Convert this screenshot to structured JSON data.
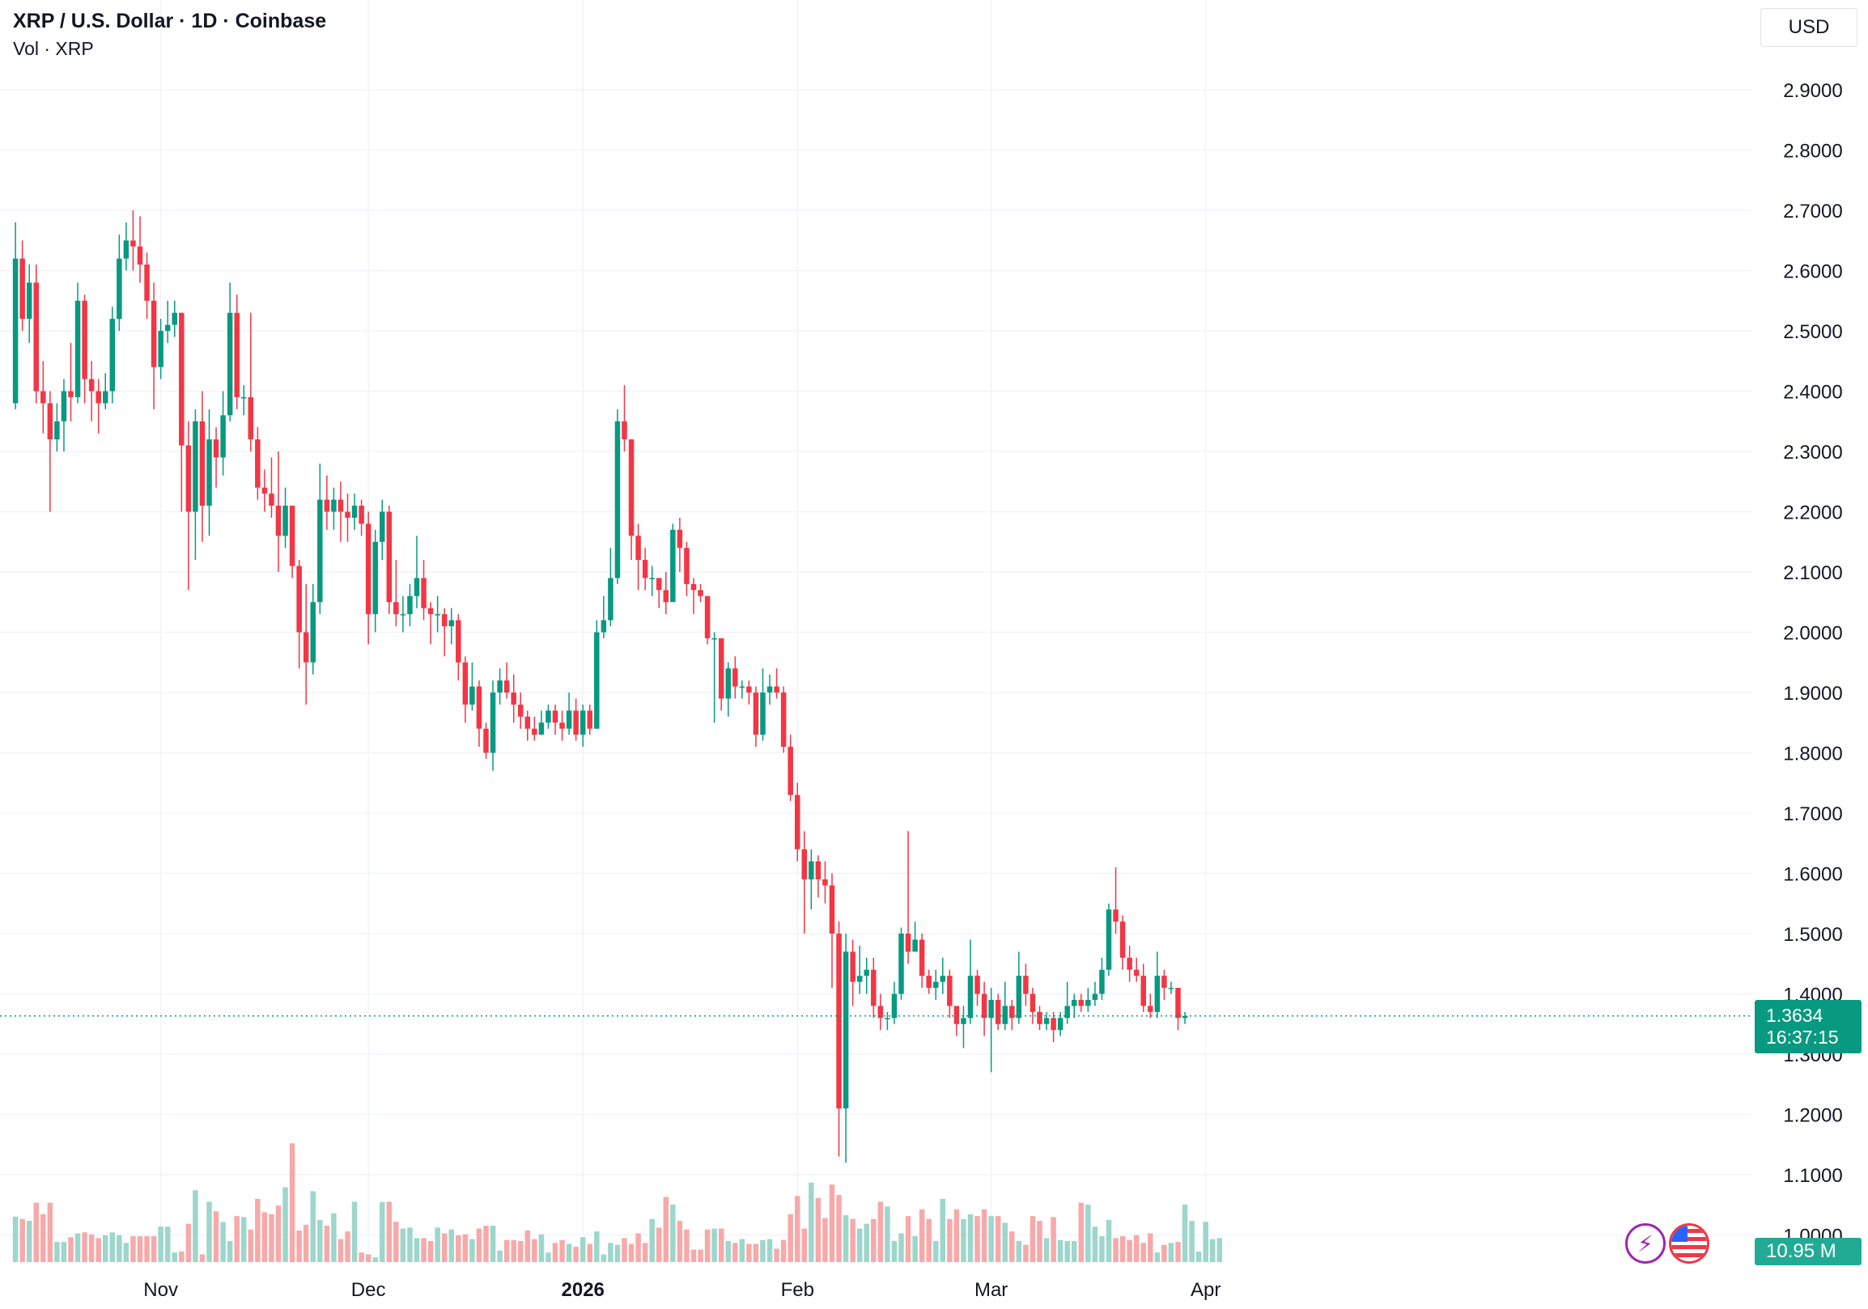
{
  "legend": {
    "title": "XRP / U.S. Dollar · 1D · Coinbase",
    "volume_label": "Vol · XRP"
  },
  "price_scale": {
    "currency": "USD"
  },
  "last_price": {
    "value": "1.3634",
    "countdown": "16:37:15",
    "color": "#089981"
  },
  "volume_last": {
    "value": "10.95 M",
    "color": "#22ab94"
  },
  "icons": {
    "badges": [
      "lightning-icon",
      "us-flag-icon"
    ]
  },
  "colors": {
    "up": "#089981",
    "down": "#f23645",
    "volume_up": "#9dd6cc",
    "volume_down": "#f7a9a9",
    "grid": "#f0f3fa"
  },
  "chart_data": {
    "type": "candlestick",
    "title": "XRP / U.S. Dollar · 1D · Coinbase",
    "y_ticks": [
      "2.9000",
      "2.8000",
      "2.7000",
      "2.6000",
      "2.5000",
      "2.4000",
      "2.3000",
      "2.2000",
      "2.1000",
      "2.0000",
      "1.9000",
      "1.8000",
      "1.7000",
      "1.6000",
      "1.5000",
      "1.4000",
      "1.3000",
      "1.2000",
      "1.1000",
      "1.0000"
    ],
    "x_ticks": [
      {
        "label": "Nov",
        "day": 23,
        "bold": false
      },
      {
        "label": "Dec",
        "day": 53,
        "bold": false
      },
      {
        "label": "2026",
        "day": 84,
        "bold": true
      },
      {
        "label": "Feb",
        "day": 115,
        "bold": false
      },
      {
        "label": "Mar",
        "day": 143,
        "bold": false
      },
      {
        "label": "Apr",
        "day": 174,
        "bold": false
      }
    ],
    "ylim": [
      0.95,
      2.97
    ],
    "grid": true,
    "last_day": 171,
    "ohlc": [
      [
        2.38,
        2.62,
        2.68,
        2.37
      ],
      [
        2.62,
        2.52,
        2.65,
        2.5
      ],
      [
        2.52,
        2.58,
        2.61,
        2.48
      ],
      [
        2.58,
        2.4,
        2.61,
        2.38
      ],
      [
        2.4,
        2.38,
        2.45,
        2.33
      ],
      [
        2.38,
        2.32,
        2.4,
        2.2
      ],
      [
        2.32,
        2.35,
        2.38,
        2.3
      ],
      [
        2.35,
        2.4,
        2.42,
        2.3
      ],
      [
        2.4,
        2.39,
        2.48,
        2.35
      ],
      [
        2.39,
        2.55,
        2.58,
        2.38
      ],
      [
        2.55,
        2.42,
        2.56,
        2.38
      ],
      [
        2.42,
        2.4,
        2.45,
        2.35
      ],
      [
        2.4,
        2.38,
        2.42,
        2.33
      ],
      [
        2.38,
        2.4,
        2.43,
        2.37
      ],
      [
        2.4,
        2.52,
        2.54,
        2.38
      ],
      [
        2.52,
        2.62,
        2.66,
        2.5
      ],
      [
        2.62,
        2.65,
        2.68,
        2.6
      ],
      [
        2.65,
        2.64,
        2.7,
        2.6
      ],
      [
        2.64,
        2.61,
        2.69,
        2.58
      ],
      [
        2.61,
        2.55,
        2.63,
        2.52
      ],
      [
        2.55,
        2.44,
        2.58,
        2.37
      ],
      [
        2.44,
        2.5,
        2.52,
        2.42
      ],
      [
        2.5,
        2.51,
        2.55,
        2.48
      ],
      [
        2.51,
        2.53,
        2.55,
        2.49
      ],
      [
        2.53,
        2.31,
        2.53,
        2.2
      ],
      [
        2.31,
        2.2,
        2.35,
        2.07
      ],
      [
        2.2,
        2.35,
        2.37,
        2.12
      ],
      [
        2.35,
        2.21,
        2.4,
        2.15
      ],
      [
        2.21,
        2.32,
        2.37,
        2.16
      ],
      [
        2.32,
        2.29,
        2.34,
        2.24
      ],
      [
        2.29,
        2.36,
        2.4,
        2.26
      ],
      [
        2.36,
        2.53,
        2.58,
        2.35
      ],
      [
        2.53,
        2.39,
        2.56,
        2.37
      ],
      [
        2.39,
        2.39,
        2.41,
        2.36
      ],
      [
        2.39,
        2.32,
        2.53,
        2.3
      ],
      [
        2.32,
        2.24,
        2.34,
        2.22
      ],
      [
        2.24,
        2.23,
        2.27,
        2.2
      ],
      [
        2.23,
        2.21,
        2.29,
        2.19
      ],
      [
        2.21,
        2.16,
        2.3,
        2.1
      ],
      [
        2.16,
        2.21,
        2.24,
        2.14
      ],
      [
        2.21,
        2.11,
        2.21,
        2.09
      ],
      [
        2.11,
        2.0,
        2.12,
        1.94
      ],
      [
        2.0,
        1.95,
        2.08,
        1.88
      ],
      [
        1.95,
        2.05,
        2.08,
        1.93
      ],
      [
        2.05,
        2.22,
        2.28,
        2.03
      ],
      [
        2.22,
        2.2,
        2.26,
        2.17
      ],
      [
        2.2,
        2.22,
        2.24,
        2.17
      ],
      [
        2.22,
        2.2,
        2.25,
        2.15
      ],
      [
        2.2,
        2.19,
        2.23,
        2.15
      ],
      [
        2.19,
        2.21,
        2.23,
        2.17
      ],
      [
        2.21,
        2.18,
        2.22,
        2.16
      ],
      [
        2.18,
        2.03,
        2.2,
        1.98
      ],
      [
        2.03,
        2.15,
        2.17,
        2.0
      ],
      [
        2.15,
        2.2,
        2.22,
        2.12
      ],
      [
        2.2,
        2.05,
        2.21,
        2.03
      ],
      [
        2.05,
        2.03,
        2.12,
        2.01
      ],
      [
        2.03,
        2.03,
        2.06,
        2.0
      ],
      [
        2.03,
        2.06,
        2.08,
        2.01
      ],
      [
        2.06,
        2.09,
        2.16,
        2.04
      ],
      [
        2.09,
        2.04,
        2.12,
        2.02
      ],
      [
        2.04,
        2.03,
        2.05,
        1.98
      ],
      [
        2.03,
        2.03,
        2.06,
        2.0
      ],
      [
        2.03,
        2.01,
        2.04,
        1.96
      ],
      [
        2.01,
        2.02,
        2.04,
        1.98
      ],
      [
        2.02,
        1.95,
        2.03,
        1.92
      ],
      [
        1.95,
        1.88,
        1.96,
        1.85
      ],
      [
        1.88,
        1.91,
        1.95,
        1.87
      ],
      [
        1.91,
        1.84,
        1.92,
        1.81
      ],
      [
        1.84,
        1.8,
        1.85,
        1.79
      ],
      [
        1.8,
        1.9,
        1.92,
        1.77
      ],
      [
        1.9,
        1.92,
        1.94,
        1.88
      ],
      [
        1.92,
        1.9,
        1.95,
        1.89
      ],
      [
        1.9,
        1.88,
        1.93,
        1.85
      ],
      [
        1.88,
        1.86,
        1.9,
        1.84
      ],
      [
        1.86,
        1.84,
        1.87,
        1.82
      ],
      [
        1.84,
        1.83,
        1.86,
        1.82
      ],
      [
        1.83,
        1.85,
        1.87,
        1.83
      ],
      [
        1.85,
        1.87,
        1.88,
        1.84
      ],
      [
        1.87,
        1.85,
        1.88,
        1.83
      ],
      [
        1.85,
        1.84,
        1.87,
        1.82
      ],
      [
        1.84,
        1.87,
        1.9,
        1.83
      ],
      [
        1.87,
        1.83,
        1.89,
        1.82
      ],
      [
        1.83,
        1.87,
        1.88,
        1.81
      ],
      [
        1.87,
        1.84,
        1.88,
        1.83
      ],
      [
        1.84,
        2.0,
        2.02,
        1.84
      ],
      [
        2.0,
        2.02,
        2.06,
        1.99
      ],
      [
        2.02,
        2.09,
        2.14,
        2.01
      ],
      [
        2.09,
        2.35,
        2.37,
        2.08
      ],
      [
        2.35,
        2.32,
        2.41,
        2.3
      ],
      [
        2.32,
        2.16,
        2.32,
        2.12
      ],
      [
        2.16,
        2.12,
        2.18,
        2.07
      ],
      [
        2.12,
        2.09,
        2.14,
        2.07
      ],
      [
        2.09,
        2.09,
        2.11,
        2.06
      ],
      [
        2.09,
        2.07,
        2.09,
        2.04
      ],
      [
        2.07,
        2.05,
        2.1,
        2.03
      ],
      [
        2.05,
        2.17,
        2.18,
        2.06
      ],
      [
        2.17,
        2.14,
        2.19,
        2.1
      ],
      [
        2.14,
        2.08,
        2.15,
        2.06
      ],
      [
        2.08,
        2.07,
        2.09,
        2.03
      ],
      [
        2.07,
        2.06,
        2.08,
        2.05
      ],
      [
        2.06,
        1.99,
        2.06,
        1.98
      ],
      [
        1.99,
        1.99,
        2.0,
        1.85
      ],
      [
        1.99,
        1.89,
        1.99,
        1.87
      ],
      [
        1.89,
        1.94,
        1.95,
        1.86
      ],
      [
        1.94,
        1.91,
        1.96,
        1.89
      ],
      [
        1.91,
        1.91,
        1.92,
        1.89
      ],
      [
        1.91,
        1.9,
        1.92,
        1.88
      ],
      [
        1.9,
        1.83,
        1.91,
        1.81
      ],
      [
        1.83,
        1.9,
        1.94,
        1.82
      ],
      [
        1.9,
        1.91,
        1.93,
        1.88
      ],
      [
        1.91,
        1.9,
        1.94,
        1.89
      ],
      [
        1.9,
        1.81,
        1.91,
        1.8
      ],
      [
        1.81,
        1.73,
        1.83,
        1.72
      ],
      [
        1.73,
        1.64,
        1.75,
        1.62
      ],
      [
        1.64,
        1.59,
        1.67,
        1.5
      ],
      [
        1.59,
        1.62,
        1.64,
        1.54
      ],
      [
        1.62,
        1.59,
        1.63,
        1.56
      ],
      [
        1.59,
        1.58,
        1.62,
        1.55
      ],
      [
        1.58,
        1.5,
        1.6,
        1.41
      ],
      [
        1.5,
        1.21,
        1.52,
        1.13
      ],
      [
        1.21,
        1.47,
        1.5,
        1.12
      ],
      [
        1.47,
        1.42,
        1.49,
        1.38
      ],
      [
        1.42,
        1.43,
        1.48,
        1.4
      ],
      [
        1.43,
        1.44,
        1.46,
        1.4
      ],
      [
        1.44,
        1.38,
        1.46,
        1.36
      ],
      [
        1.38,
        1.36,
        1.4,
        1.34
      ],
      [
        1.36,
        1.36,
        1.37,
        1.34
      ],
      [
        1.36,
        1.4,
        1.42,
        1.35
      ],
      [
        1.4,
        1.5,
        1.51,
        1.39
      ],
      [
        1.5,
        1.47,
        1.67,
        1.45
      ],
      [
        1.47,
        1.49,
        1.52,
        1.47
      ],
      [
        1.49,
        1.43,
        1.5,
        1.41
      ],
      [
        1.43,
        1.41,
        1.44,
        1.4
      ],
      [
        1.41,
        1.42,
        1.44,
        1.39
      ],
      [
        1.42,
        1.43,
        1.46,
        1.4
      ],
      [
        1.43,
        1.38,
        1.44,
        1.36
      ],
      [
        1.38,
        1.35,
        1.38,
        1.33
      ],
      [
        1.35,
        1.36,
        1.38,
        1.31
      ],
      [
        1.36,
        1.43,
        1.49,
        1.35
      ],
      [
        1.43,
        1.4,
        1.44,
        1.38
      ],
      [
        1.4,
        1.36,
        1.42,
        1.33
      ],
      [
        1.36,
        1.39,
        1.41,
        1.27
      ],
      [
        1.39,
        1.35,
        1.4,
        1.34
      ],
      [
        1.35,
        1.38,
        1.42,
        1.34
      ],
      [
        1.38,
        1.36,
        1.39,
        1.34
      ],
      [
        1.36,
        1.43,
        1.47,
        1.35
      ],
      [
        1.43,
        1.4,
        1.45,
        1.38
      ],
      [
        1.4,
        1.37,
        1.41,
        1.35
      ],
      [
        1.37,
        1.35,
        1.38,
        1.34
      ],
      [
        1.35,
        1.36,
        1.37,
        1.34
      ],
      [
        1.36,
        1.34,
        1.37,
        1.32
      ],
      [
        1.34,
        1.36,
        1.37,
        1.33
      ],
      [
        1.36,
        1.38,
        1.42,
        1.35
      ],
      [
        1.38,
        1.39,
        1.4,
        1.36
      ],
      [
        1.39,
        1.38,
        1.4,
        1.37
      ],
      [
        1.38,
        1.39,
        1.41,
        1.37
      ],
      [
        1.39,
        1.4,
        1.42,
        1.38
      ],
      [
        1.4,
        1.44,
        1.46,
        1.39
      ],
      [
        1.44,
        1.54,
        1.55,
        1.43
      ],
      [
        1.54,
        1.52,
        1.61,
        1.5
      ],
      [
        1.52,
        1.46,
        1.53,
        1.44
      ],
      [
        1.46,
        1.44,
        1.48,
        1.42
      ],
      [
        1.44,
        1.43,
        1.46,
        1.42
      ],
      [
        1.43,
        1.38,
        1.45,
        1.37
      ],
      [
        1.38,
        1.37,
        1.4,
        1.36
      ],
      [
        1.37,
        1.43,
        1.47,
        1.36
      ],
      [
        1.43,
        1.41,
        1.44,
        1.39
      ],
      [
        1.41,
        1.41,
        1.42,
        1.4
      ],
      [
        1.41,
        1.36,
        1.41,
        1.34
      ],
      [
        1.36,
        1.3634,
        1.37,
        1.35
      ]
    ],
    "volume": [
      95,
      90,
      86,
      124,
      100,
      124,
      42,
      42,
      52,
      60,
      62,
      58,
      50,
      56,
      62,
      56,
      40,
      54,
      54,
      54,
      54,
      74,
      74,
      20,
      22,
      80,
      150,
      16,
      126,
      106,
      84,
      44,
      96,
      94,
      68,
      132,
      104,
      100,
      118,
      156,
      248,
      66,
      78,
      148,
      88,
      76,
      102,
      48,
      64,
      126,
      20,
      16,
      10,
      125,
      126,
      84,
      70,
      72,
      50,
      50,
      44,
      72,
      60,
      68,
      56,
      58,
      48,
      70,
      76,
      76,
      24,
      46,
      46,
      44,
      66,
      48,
      58,
      20,
      40,
      46,
      38,
      32,
      52,
      38,
      64,
      16,
      40,
      36,
      50,
      38,
      60,
      40,
      90,
      72,
      136,
      120,
      86,
      68,
      26,
      26,
      68,
      70,
      70,
      44,
      40,
      48,
      38,
      38,
      46,
      48,
      28,
      46,
      100,
      138,
      70,
      166,
      134,
      92,
      162,
      140,
      98,
      90,
      70,
      80,
      90,
      126,
      116,
      44,
      60,
      96,
      54,
      110,
      90,
      44,
      132,
      90,
      110,
      90,
      100,
      96,
      110,
      96,
      96,
      82,
      64,
      44,
      36,
      96,
      86,
      50,
      94,
      46,
      44,
      44,
      124,
      120,
      74,
      54,
      88,
      50,
      54,
      46,
      56,
      40,
      60,
      20,
      36,
      40,
      42,
      120,
      86,
      22,
      84,
      48,
      50
    ]
  }
}
